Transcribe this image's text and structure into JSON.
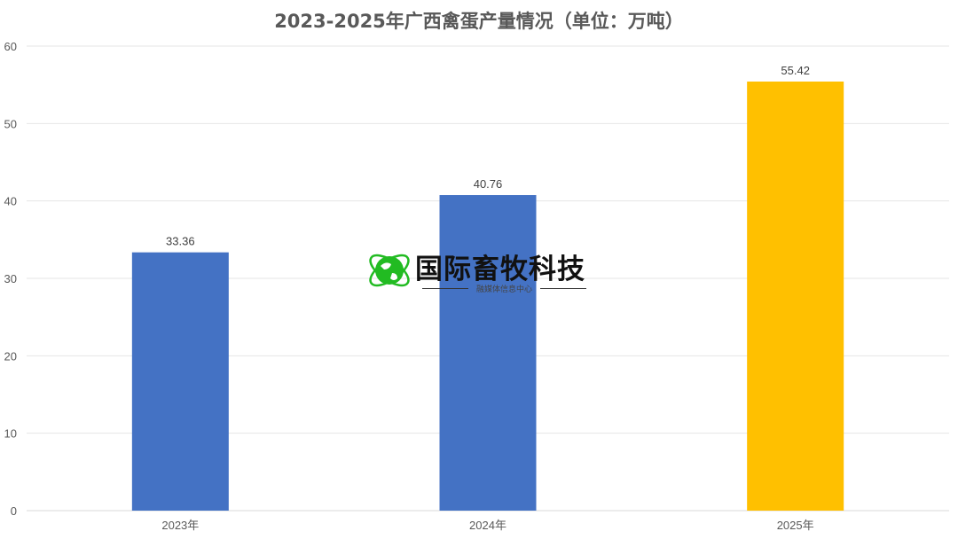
{
  "chart_data": {
    "type": "bar",
    "title": "2023-2025年广西禽蛋产量情况（单位：万吨）",
    "categories": [
      "2023年",
      "2024年",
      "2025年"
    ],
    "values": [
      33.36,
      40.76,
      55.42
    ],
    "data_labels": [
      "33.36",
      "40.76",
      "55.42"
    ],
    "bar_colors": [
      "#4472C4",
      "#4472C4",
      "#FFC000"
    ],
    "ylim": [
      0,
      60
    ],
    "yticks": [
      0,
      10,
      20,
      30,
      40,
      50,
      60
    ],
    "grid": true,
    "xlabel": "",
    "ylabel": ""
  },
  "watermark": {
    "name": "国际畜牧科技",
    "subtitle": "融媒体信息中心",
    "logo_color": "#22BB22"
  }
}
